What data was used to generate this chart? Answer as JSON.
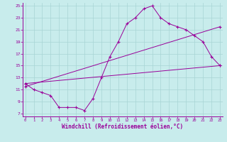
{
  "xlabel": "Windchill (Refroidissement éolien,°C)",
  "bg_color": "#c8ecec",
  "grid_color": "#a8d4d4",
  "line_color": "#990099",
  "xlim_min": -0.3,
  "xlim_max": 23.3,
  "ylim_min": 6.5,
  "ylim_max": 25.5,
  "yticks": [
    7,
    9,
    11,
    13,
    15,
    17,
    19,
    21,
    23,
    25
  ],
  "xticks": [
    0,
    1,
    2,
    3,
    4,
    5,
    6,
    7,
    8,
    9,
    10,
    11,
    12,
    13,
    14,
    15,
    16,
    17,
    18,
    19,
    20,
    21,
    22,
    23
  ],
  "line1_x": [
    0,
    1,
    2,
    3,
    4,
    5,
    6,
    7,
    8,
    9,
    10,
    11,
    12,
    13,
    14,
    15,
    16,
    17,
    18,
    19,
    20,
    21,
    22,
    23
  ],
  "line1_y": [
    12.0,
    11.0,
    10.5,
    10.0,
    8.0,
    8.0,
    8.0,
    7.5,
    9.5,
    13.0,
    16.5,
    19.0,
    22.0,
    23.0,
    24.5,
    25.0,
    23.0,
    22.0,
    21.5,
    21.0,
    20.0,
    19.0,
    16.5,
    15.0
  ],
  "line2_x": [
    0,
    23
  ],
  "line2_y": [
    11.5,
    21.5
  ],
  "line3_x": [
    0,
    23
  ],
  "line3_y": [
    12.0,
    15.0
  ]
}
